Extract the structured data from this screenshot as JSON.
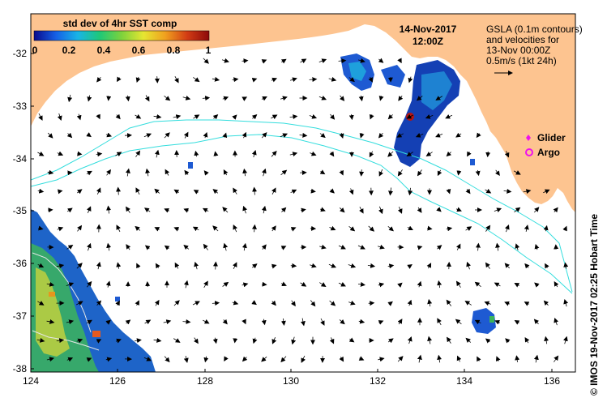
{
  "colorbar": {
    "title": "std dev of 4hr SST comp",
    "ticks": [
      "0",
      "0.2",
      "0.4",
      "0.6",
      "0.8",
      "1"
    ],
    "stops": [
      "#0a0a8c",
      "#1560e6",
      "#19b4e6",
      "#1ec878",
      "#7dd23c",
      "#e6e632",
      "#f0a01e",
      "#d23c14",
      "#8c0a0a"
    ]
  },
  "datetime": {
    "date": "14-Nov-2017",
    "time": "12:00Z"
  },
  "gsla_note": {
    "line1": "GSLA (0.1m contours)",
    "line2": "and velocities for",
    "line3": "13-Nov 00:00Z",
    "scale": "0.5m/s (1kt 24h)"
  },
  "legend": {
    "glider": {
      "label": "Glider",
      "color": "#ee11ee"
    },
    "argo": {
      "label": "Argo",
      "color": "#ee11ee"
    }
  },
  "axes": {
    "lat_ticks": [
      "-32",
      "-33",
      "-34",
      "-35",
      "-36",
      "-37",
      "-38"
    ],
    "lon_ticks": [
      "124",
      "126",
      "128",
      "130",
      "132",
      "134",
      "136"
    ]
  },
  "credit": "© IMOS 19-Nov-2017 02:25 Hobart Time",
  "colors": {
    "land": "#fdc490",
    "contour": "#33dddd",
    "ocean": "#ffffff"
  }
}
